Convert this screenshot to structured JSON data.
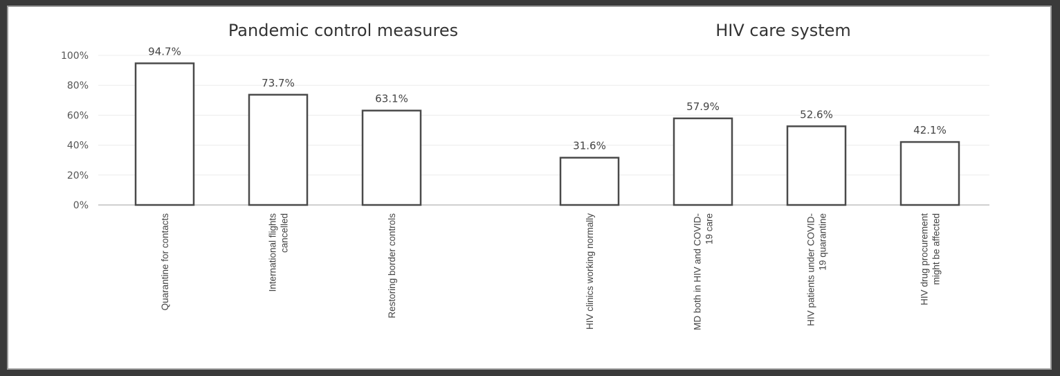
{
  "chart_data": {
    "type": "bar",
    "groups": [
      {
        "title": "Pandemic control measures",
        "categories": [
          [
            "Quarantine for contacts"
          ],
          [
            "International flights",
            "cancelled"
          ],
          [
            "Restoring border controls"
          ]
        ],
        "values": [
          94.7,
          73.7,
          63.1
        ],
        "labels": [
          "94.7%",
          "73.7%",
          "63.1%"
        ]
      },
      {
        "title": "HIV care system",
        "categories": [
          [
            "HIV clinics working normally"
          ],
          [
            "MD both in HIV and COVID-",
            "19 care"
          ],
          [
            "HIV patients under COVID-",
            "19 quarantine"
          ],
          [
            "HIV drug procurement",
            "might be affected"
          ]
        ],
        "values": [
          31.6,
          57.9,
          52.6,
          42.1
        ],
        "labels": [
          "31.6%",
          "57.9%",
          "52.6%",
          "42.1%"
        ]
      }
    ],
    "yticks": [
      "0%",
      "20%",
      "40%",
      "60%",
      "80%",
      "100%"
    ],
    "ylim": [
      0,
      100
    ],
    "grid": true,
    "legend": "none",
    "colors": {
      "bar_fill": "#ffffff",
      "bar_stroke": "#4a4a4a"
    }
  }
}
